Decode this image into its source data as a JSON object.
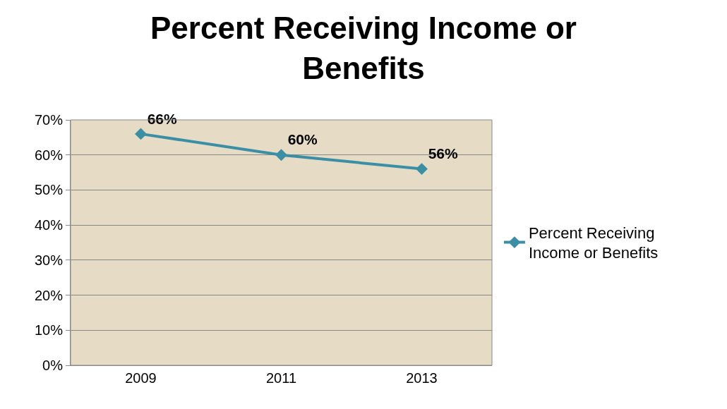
{
  "chart_data": {
    "type": "line",
    "title": "Percent Receiving Income or Benefits",
    "categories": [
      "2009",
      "2011",
      "2013"
    ],
    "series": [
      {
        "name": "Percent Receiving Income or Benefits",
        "color": "#3b8fa5",
        "values": [
          66,
          60,
          56
        ],
        "value_labels": [
          "66%",
          "60%",
          "56%"
        ]
      }
    ],
    "ylim": [
      0,
      70
    ],
    "yticks": [
      {
        "value": 0,
        "label": "0%"
      },
      {
        "value": 10,
        "label": "10%"
      },
      {
        "value": 20,
        "label": "20%"
      },
      {
        "value": 30,
        "label": "30%"
      },
      {
        "value": 40,
        "label": "40%"
      },
      {
        "value": 50,
        "label": "50%"
      },
      {
        "value": 60,
        "label": "60%"
      },
      {
        "value": 70,
        "label": "70%"
      }
    ],
    "grid": "y",
    "legend": "right",
    "marker": "diamond",
    "line_style": "solid"
  }
}
